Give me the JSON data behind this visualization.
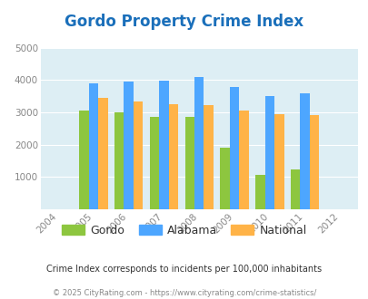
{
  "title": "Gordo Property Crime Index",
  "years": [
    2004,
    2005,
    2006,
    2007,
    2008,
    2009,
    2010,
    2011,
    2012
  ],
  "data_years": [
    2005,
    2006,
    2007,
    2008,
    2009,
    2010,
    2011
  ],
  "gordo": [
    3050,
    3000,
    2850,
    2850,
    1900,
    1075,
    1225
  ],
  "alabama": [
    3900,
    3950,
    3975,
    4100,
    3775,
    3500,
    3600
  ],
  "national": [
    3450,
    3350,
    3250,
    3225,
    3050,
    2950,
    2925
  ],
  "gordo_color": "#8dc63f",
  "alabama_color": "#4da6ff",
  "national_color": "#ffb347",
  "ylim": [
    0,
    5000
  ],
  "yticks": [
    0,
    1000,
    2000,
    3000,
    4000,
    5000
  ],
  "xlim": [
    2003.5,
    2012.5
  ],
  "bar_width": 0.27,
  "fig_bg_color": "#ffffff",
  "plot_bg_color": "#ddeef4",
  "title_color": "#1a6fba",
  "tick_color": "#888888",
  "footer_note": "Crime Index corresponds to incidents per 100,000 inhabitants",
  "footer_credit": "© 2025 CityRating.com - https://www.cityrating.com/crime-statistics/",
  "legend_labels": [
    "Gordo",
    "Alabama",
    "National"
  ]
}
